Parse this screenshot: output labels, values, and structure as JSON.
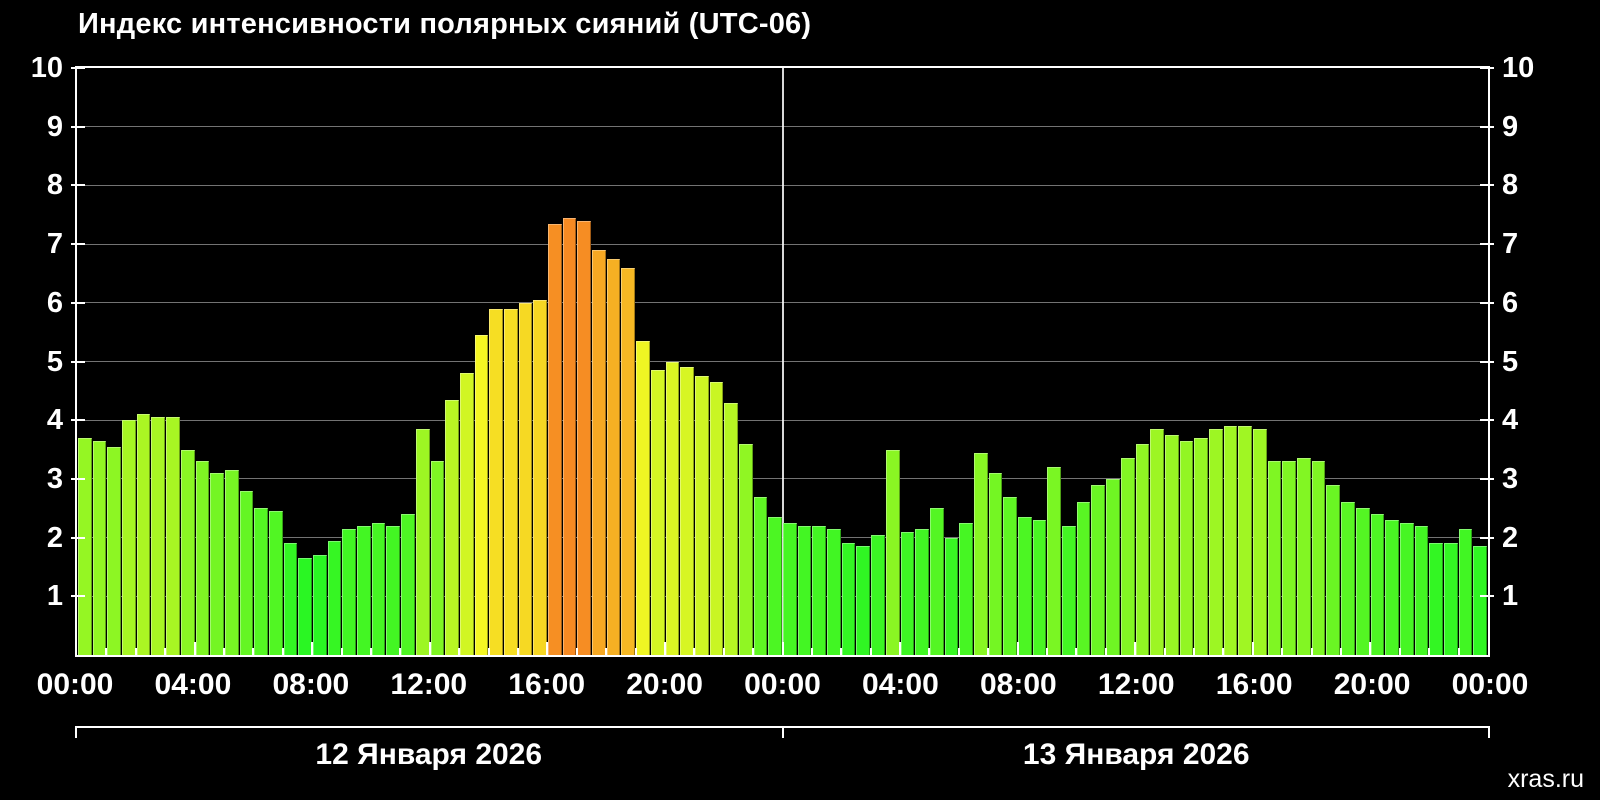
{
  "title": "Индекс интенсивности полярных сияний (UTC-06)",
  "watermark": "xras.ru",
  "chart_data": {
    "type": "bar",
    "title": "Индекс интенсивности полярных сияний (UTC-06)",
    "ylabel": "",
    "xlabel": "",
    "ylim": [
      0,
      10
    ],
    "y_ticks": [
      1,
      2,
      3,
      4,
      5,
      6,
      7,
      8,
      9,
      10
    ],
    "x_labels": [
      "00:00",
      "04:00",
      "08:00",
      "12:00",
      "16:00",
      "20:00",
      "00:00",
      "04:00",
      "08:00",
      "12:00",
      "16:00",
      "20:00",
      "00:00"
    ],
    "bar_interval_minutes": 30,
    "hours_total": 48,
    "grid": true,
    "colors": {
      "background": "#000000",
      "axis": "#ffffff",
      "grid": "rgba(255,255,255,0.45)",
      "low_example": "#44e028",
      "mid_example": "#e0e020",
      "high_example": "#f08020"
    },
    "color_scale": {
      "hue_at_min": 120,
      "value_min": 1.6,
      "hue_per_unit": 15.5,
      "hue_floor": 28,
      "hue_ceil": 118,
      "saturation": 92,
      "lightness": 55
    },
    "days": [
      {
        "date_label": "12 Января 2026",
        "values": [
          3.7,
          3.65,
          3.55,
          4.0,
          4.1,
          4.05,
          4.05,
          3.5,
          3.3,
          3.1,
          3.15,
          2.8,
          2.5,
          2.45,
          1.9,
          1.65,
          1.7,
          1.95,
          2.15,
          2.2,
          2.25,
          2.2,
          2.4,
          3.85,
          3.3,
          4.35,
          4.8,
          5.45,
          5.9,
          5.9,
          6.0,
          6.05,
          7.35,
          7.45,
          7.4,
          6.9,
          6.75,
          6.6,
          5.35,
          4.85,
          5.0,
          4.9,
          4.75,
          4.65,
          4.3,
          3.6,
          2.7,
          2.35
        ]
      },
      {
        "date_label": "13 Января 2026",
        "values": [
          2.25,
          2.2,
          2.2,
          2.15,
          1.9,
          1.85,
          2.05,
          3.5,
          2.1,
          2.15,
          2.5,
          2.0,
          2.25,
          3.45,
          3.1,
          2.7,
          2.35,
          2.3,
          3.2,
          2.2,
          2.6,
          2.9,
          3.0,
          3.35,
          3.6,
          3.85,
          3.75,
          3.65,
          3.7,
          3.85,
          3.9,
          3.9,
          3.85,
          3.3,
          3.3,
          3.35,
          3.3,
          2.9,
          2.6,
          2.5,
          2.4,
          2.3,
          2.25,
          2.2,
          1.9,
          1.9,
          2.15,
          1.85
        ]
      }
    ]
  }
}
